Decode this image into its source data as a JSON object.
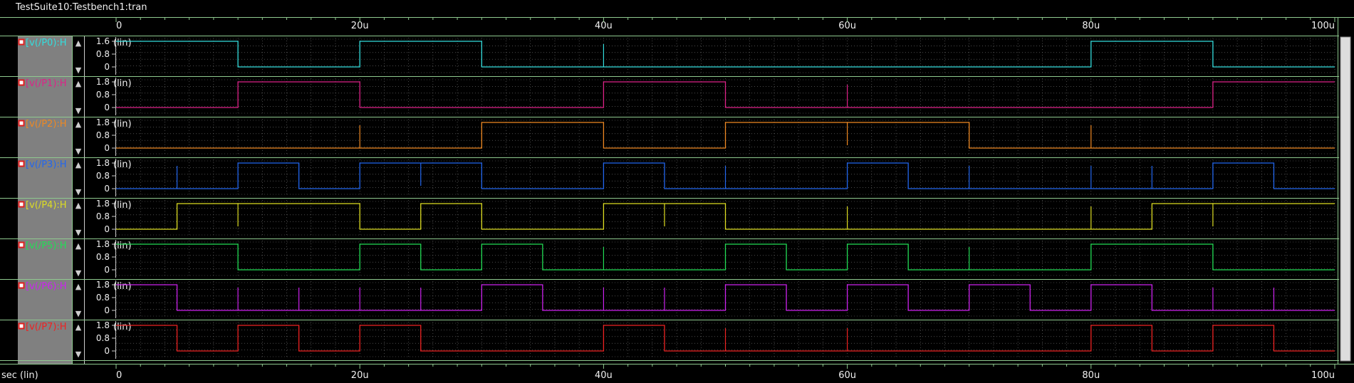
{
  "window": {
    "title": "TestSuite10:Testbench1:tran"
  },
  "x_axis": {
    "unit_label": "sec (lin)",
    "tick_labels": [
      "0",
      "20u",
      "40u",
      "60u",
      "80u",
      "100u"
    ],
    "min": 0,
    "max": 100,
    "units": "u"
  },
  "lin_label": "(lin)",
  "colors": {
    "background": "#000000",
    "frame": "#8fc98f",
    "grid_dot": "#777777",
    "left_panel": "#808080"
  },
  "icons": {
    "signal_marker": "red-square-marker-icon",
    "scroll_up": "up-arrow-icon",
    "scroll_down": "down-arrow-icon"
  },
  "signals": [
    {
      "label": "[v(/P0):H",
      "color": "#33dddd",
      "y_ticks": [
        "1.6",
        "0.8",
        "0"
      ],
      "y_max": 1.6,
      "waveform": [
        [
          0,
          1
        ],
        [
          10,
          0
        ],
        [
          20,
          1
        ],
        [
          30,
          0
        ],
        [
          80,
          1
        ],
        [
          90,
          0
        ]
      ],
      "glitches": [
        40
      ]
    },
    {
      "label": "[v(/P1):H",
      "color": "#dd2288",
      "y_ticks": [
        "1.8",
        "0.8",
        "0"
      ],
      "y_max": 1.8,
      "waveform": [
        [
          0,
          0
        ],
        [
          10,
          1
        ],
        [
          20,
          0
        ],
        [
          40,
          1
        ],
        [
          50,
          0
        ],
        [
          90,
          1
        ]
      ],
      "glitches": [
        60
      ]
    },
    {
      "label": "[v(/P2):H",
      "color": "#ee8822",
      "y_ticks": [
        "1.8",
        "0.8",
        "0"
      ],
      "y_max": 1.8,
      "waveform": [
        [
          0,
          0
        ],
        [
          30,
          1
        ],
        [
          40,
          0
        ],
        [
          50,
          1
        ],
        [
          70,
          0
        ]
      ],
      "glitches": [
        20,
        60,
        80
      ]
    },
    {
      "label": "[v(/P3):H",
      "color": "#2266ee",
      "y_ticks": [
        "1.8",
        "0.8",
        "0"
      ],
      "y_max": 1.8,
      "waveform": [
        [
          0,
          0
        ],
        [
          10,
          1
        ],
        [
          15,
          0
        ],
        [
          20,
          1
        ],
        [
          30,
          0
        ],
        [
          40,
          1
        ],
        [
          45,
          0
        ],
        [
          60,
          1
        ],
        [
          65,
          0
        ],
        [
          90,
          1
        ],
        [
          95,
          0
        ]
      ],
      "glitches": [
        5,
        25,
        50,
        70,
        80,
        85
      ]
    },
    {
      "label": "[v(/P4):H",
      "color": "#dddd22",
      "y_ticks": [
        "1.8",
        "0.8",
        "0"
      ],
      "y_max": 1.8,
      "waveform": [
        [
          0,
          0
        ],
        [
          5,
          1
        ],
        [
          20,
          0
        ],
        [
          25,
          1
        ],
        [
          30,
          0
        ],
        [
          40,
          1
        ],
        [
          50,
          0
        ],
        [
          85,
          1
        ]
      ],
      "glitches": [
        10,
        45,
        60,
        80,
        90
      ]
    },
    {
      "label": "[v(/P5):H",
      "color": "#22dd55",
      "y_ticks": [
        "1.8",
        "0.8",
        "0"
      ],
      "y_max": 1.8,
      "waveform": [
        [
          0,
          1
        ],
        [
          10,
          0
        ],
        [
          20,
          1
        ],
        [
          25,
          0
        ],
        [
          30,
          1
        ],
        [
          35,
          0
        ],
        [
          50,
          1
        ],
        [
          55,
          0
        ],
        [
          60,
          1
        ],
        [
          65,
          0
        ],
        [
          80,
          1
        ],
        [
          90,
          0
        ]
      ],
      "glitches": [
        40,
        70
      ]
    },
    {
      "label": "[v(/P6):H",
      "color": "#cc22ee",
      "y_ticks": [
        "1.8",
        "0.8",
        "0"
      ],
      "y_max": 1.8,
      "waveform": [
        [
          0,
          1
        ],
        [
          5,
          0
        ],
        [
          30,
          1
        ],
        [
          35,
          0
        ],
        [
          50,
          1
        ],
        [
          55,
          0
        ],
        [
          60,
          1
        ],
        [
          65,
          0
        ],
        [
          70,
          1
        ],
        [
          75,
          0
        ],
        [
          80,
          1
        ],
        [
          85,
          0
        ]
      ],
      "glitches": [
        10,
        15,
        20,
        25,
        40,
        45,
        90,
        95
      ]
    },
    {
      "label": "[v(/P7):H",
      "color": "#ee2222",
      "y_ticks": [
        "1.8",
        "0.8",
        "0"
      ],
      "y_max": 1.8,
      "waveform": [
        [
          0,
          1
        ],
        [
          5,
          0
        ],
        [
          10,
          1
        ],
        [
          15,
          0
        ],
        [
          20,
          1
        ],
        [
          25,
          0
        ],
        [
          40,
          1
        ],
        [
          45,
          0
        ],
        [
          80,
          1
        ],
        [
          85,
          0
        ],
        [
          90,
          1
        ],
        [
          95,
          0
        ]
      ],
      "glitches": [
        50,
        60
      ]
    }
  ]
}
